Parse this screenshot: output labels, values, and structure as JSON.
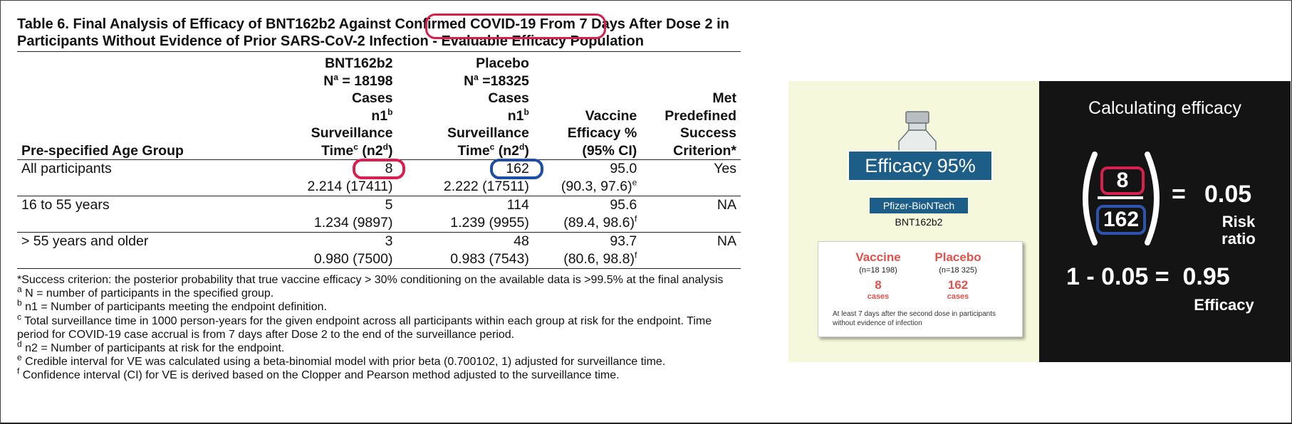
{
  "document": {
    "title": "Table 6. Final Analysis of Efficacy of BNT162b2 Against Confirmed COVID-19 From 7 Days After Dose 2 in Participants Without Evidence of Prior SARS-CoV-2 Infection - Evaluable Efficacy Population",
    "title_parts": {
      "before": "Table 6. Final Analysis of Efficacy of BNT162b2 Against ",
      "highlight": "Confirmed COVID-19",
      "after": " From 7 Days After Dose 2 in Participants Without Evidence of Prior SARS-CoV-2 Infection - Evaluable Efficacy Population"
    },
    "headers": {
      "age_group": "Pre-specified Age Group",
      "bnt_name": "BNT162b2",
      "bnt_n": "N",
      "bnt_n_sup": "a",
      "bnt_n_val": " = 18198",
      "placebo_name": "Placebo",
      "placebo_n": "N",
      "placebo_n_sup": "a",
      "placebo_n_val": " =18325",
      "cases": "Cases",
      "n1": "n1",
      "n1_sup": "b",
      "surv": "Surveillance",
      "time": "Time",
      "time_sup": "c",
      "n2": " (n2",
      "n2_sup": "d",
      "n2_close": ")",
      "ve1": "Vaccine",
      "ve2": "Efficacy %",
      "ve3": "(95% CI)",
      "met1": "Met",
      "met2": "Predefined",
      "met3": "Success",
      "met4": "Criterion*"
    },
    "rows": [
      {
        "group": "All participants",
        "bnt_cases": "8",
        "bnt_time": "2.214 (17411)",
        "pbo_cases": "162",
        "pbo_time": "2.222 (17511)",
        "ve": "95.0",
        "ci": "(90.3, 97.6)",
        "ci_sup": "e",
        "met": "Yes"
      },
      {
        "group": "16 to 55 years",
        "bnt_cases": "5",
        "bnt_time": "1.234 (9897)",
        "pbo_cases": "114",
        "pbo_time": "1.239 (9955)",
        "ve": "95.6",
        "ci": "(89.4, 98.6)",
        "ci_sup": "f",
        "met": "NA"
      },
      {
        "group": "> 55 years and older",
        "bnt_cases": "3",
        "bnt_time": "0.980 (7500)",
        "pbo_cases": "48",
        "pbo_time": "0.983 (7543)",
        "ve": "93.7",
        "ci": "(80.6, 98.8)",
        "ci_sup": "f",
        "met": "NA"
      }
    ],
    "footnotes": [
      {
        "sup": "",
        "text": "*Success criterion: the posterior probability that true vaccine efficacy > 30% conditioning on the available data is >99.5% at the final analysis"
      },
      {
        "sup": "a",
        "text": " N = number of participants in the specified group."
      },
      {
        "sup": "b",
        "text": " n1 = Number of participants meeting the endpoint definition."
      },
      {
        "sup": "c",
        "text": " Total surveillance time in 1000 person-years for the given endpoint across all participants within each group at risk for the endpoint. Time period for COVID-19 case accrual is from 7 days after Dose 2 to the end of the surveillance period."
      },
      {
        "sup": "d",
        "text": " n2 = Number of participants at risk for the endpoint."
      },
      {
        "sup": "e",
        "text": " Credible interval for VE was calculated using a beta-binomial model with prior beta (0.700102, 1) adjusted for surveillance time."
      },
      {
        "sup": "f",
        "text": " Confidence interval (CI) for VE is derived based on the Clopper and Pearson method adjusted to the surveillance time."
      }
    ]
  },
  "infographic": {
    "efficacy_badge": "Efficacy 95%",
    "manufacturer": "Pfizer-BioNTech",
    "product": "BNT162b2",
    "vaccine_label": "Vaccine",
    "vaccine_n": "(n=18 198)",
    "vaccine_cases": "8",
    "placebo_label": "Placebo",
    "placebo_n": "(n=18 325)",
    "placebo_cases": "162",
    "cases_label": "cases",
    "note": "At least 7 days after the second dose in participants without evidence of infection",
    "colors": {
      "panel_bg": "#f6f8dc",
      "badge": "#1d5e88",
      "accent": "#e4514b"
    }
  },
  "calculation": {
    "header": "Calculating efficacy",
    "numerator": "8",
    "denominator": "162",
    "equals": "=",
    "risk_ratio": "0.05",
    "risk_ratio_label_1": "Risk",
    "risk_ratio_label_2": "ratio",
    "line2": "1 - 0.05 =  0.95",
    "efficacy_label": "Efficacy",
    "colors": {
      "bg": "#141414",
      "numerator_ring": "#d81f4e",
      "denominator_ring": "#2d55b0"
    }
  }
}
